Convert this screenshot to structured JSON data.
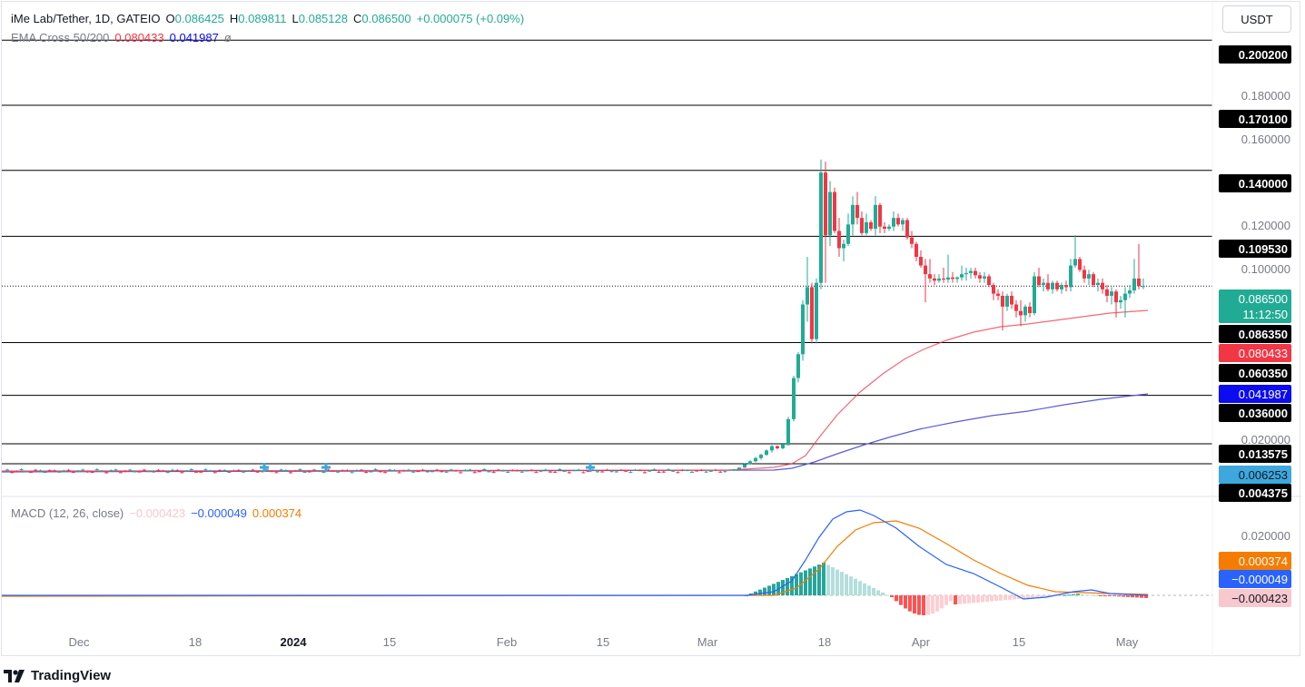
{
  "header": {
    "symbol": "iMe Lab/Tether, 1D, GATEIO",
    "o_label": "O",
    "o_value": "0.086425",
    "h_label": "H",
    "h_value": "0.089811",
    "l_label": "L",
    "l_value": "0.085128",
    "c_label": "C",
    "c_value": "0.086500",
    "change": "+0.000075 (+0.09%)",
    "ema_label": "EMA Cross 50/200",
    "ema50_value": "0.080433",
    "ema200_value": "0.041987",
    "ema_settings_glyph": "ø",
    "currency": "USDT"
  },
  "macd_legend": {
    "label": "MACD (12, 26, close)",
    "hist_value": "−0.000423",
    "macd_value": "−0.000049",
    "signal_value": "0.000374"
  },
  "price_axis": {
    "ticks": [
      "0.180000",
      "0.160000",
      "0.120000",
      "0.100000",
      "0.020000"
    ]
  },
  "macd_axis": {
    "ticks": [
      "0.020000"
    ]
  },
  "level_labels": [
    {
      "value": "0.200200",
      "color": "#000000"
    },
    {
      "value": "0.170100",
      "color": "#000000"
    },
    {
      "value": "0.140000",
      "color": "#000000"
    },
    {
      "value": "0.109530",
      "color": "#000000"
    },
    {
      "value": "0.086500",
      "color": "#22ab94"
    },
    {
      "value": "11:12:50",
      "color": "#22ab94"
    },
    {
      "value": "0.086350",
      "color": "#000000"
    },
    {
      "value": "0.080433",
      "color": "#f23645"
    },
    {
      "value": "0.060350",
      "color": "#000000"
    },
    {
      "value": "0.041987",
      "color": "#0c0cf0"
    },
    {
      "value": "0.036000",
      "color": "#000000"
    },
    {
      "value": "0.013575",
      "color": "#000000"
    },
    {
      "value": "0.006253",
      "color": "#3ea7dd"
    },
    {
      "value": "0.004375",
      "color": "#000000"
    }
  ],
  "macd_labels": [
    {
      "value": "0.000374",
      "color": "#f57c00"
    },
    {
      "value": "−0.000049",
      "color": "#2962ff"
    },
    {
      "value": "−0.000423",
      "color": "#f8c8cf"
    }
  ],
  "time_axis": [
    "Dec",
    "18",
    "2024",
    "15",
    "Feb",
    "15",
    "Mar",
    "18",
    "Apr",
    "15",
    "May"
  ],
  "brand": "TradingView",
  "colors": {
    "up": "#22ab94",
    "down": "#f23645",
    "ema50": "#f23645",
    "ema200": "#5b5bd6",
    "macd": "#2962ff",
    "signal": "#f57c00"
  }
}
